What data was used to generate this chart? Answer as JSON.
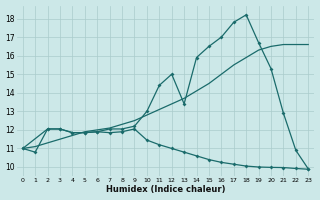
{
  "xlabel": "Humidex (Indice chaleur)",
  "background_color": "#cce8e8",
  "grid_color": "#aacccc",
  "line_color": "#1a6b6b",
  "xlim": [
    -0.5,
    23.5
  ],
  "ylim": [
    9.5,
    18.7
  ],
  "xticks": [
    0,
    1,
    2,
    3,
    4,
    5,
    6,
    7,
    8,
    9,
    10,
    11,
    12,
    13,
    14,
    15,
    16,
    17,
    18,
    19,
    20,
    21,
    22,
    23
  ],
  "yticks": [
    10,
    11,
    12,
    13,
    14,
    15,
    16,
    17,
    18
  ],
  "line1_x": [
    0,
    1,
    2,
    3,
    4,
    5,
    6,
    7,
    8,
    9,
    10,
    11,
    12,
    13,
    14,
    15,
    16,
    17,
    18,
    19,
    20,
    21,
    22,
    23
  ],
  "line1_y": [
    11.0,
    10.8,
    12.05,
    12.05,
    11.85,
    11.85,
    11.9,
    11.85,
    11.9,
    12.05,
    11.45,
    11.2,
    11.0,
    10.8,
    10.6,
    10.4,
    10.25,
    10.15,
    10.05,
    10.0,
    9.98,
    9.97,
    9.92,
    9.88
  ],
  "line2_x": [
    0,
    1,
    2,
    3,
    4,
    5,
    6,
    7,
    8,
    9,
    10,
    11,
    12,
    13,
    14,
    15,
    16,
    17,
    18,
    19,
    20,
    21,
    22,
    23
  ],
  "line2_y": [
    11.0,
    11.1,
    11.3,
    11.5,
    11.7,
    11.9,
    12.0,
    12.1,
    12.3,
    12.5,
    12.8,
    13.1,
    13.4,
    13.7,
    14.1,
    14.5,
    15.0,
    15.5,
    15.9,
    16.3,
    16.5,
    16.6,
    16.6,
    16.6
  ],
  "line3_x": [
    0,
    2,
    3,
    4,
    5,
    6,
    7,
    8,
    9,
    10,
    11,
    12,
    13,
    14,
    15,
    16,
    17,
    18,
    19,
    20,
    21,
    22,
    23
  ],
  "line3_y": [
    11.0,
    12.05,
    12.05,
    11.85,
    11.85,
    11.9,
    12.05,
    12.05,
    12.2,
    13.0,
    14.4,
    15.0,
    13.4,
    15.9,
    16.5,
    17.0,
    17.8,
    18.2,
    16.7,
    15.3,
    12.9,
    10.9,
    9.9
  ]
}
